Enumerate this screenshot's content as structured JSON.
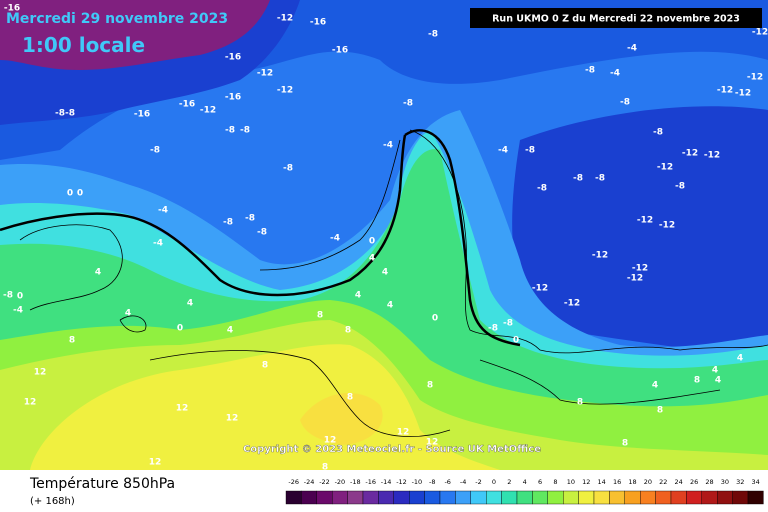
{
  "header": {
    "date": "Mercredi 29 novembre 2023",
    "time": "1:00 locale",
    "run": "Run UKMO 0 Z du Mercredi 22 novembre 2023"
  },
  "copyright": "Copyright © 2023 Meteociel.fr - Source UK MetOffice",
  "footer": {
    "title": "Température 850hPa",
    "subtitle": "(+ 168h)"
  },
  "legend": {
    "ticks": [
      -26,
      -24,
      -22,
      -20,
      -18,
      -16,
      -14,
      -12,
      -10,
      -8,
      -6,
      -4,
      -2,
      0,
      2,
      4,
      6,
      8,
      10,
      12,
      14,
      16,
      18,
      20,
      22,
      24,
      26,
      28,
      30,
      32,
      34
    ],
    "colors": [
      "#2a0030",
      "#4b0050",
      "#6a0a6a",
      "#80207f",
      "#8b3a8b",
      "#6a2aa0",
      "#4a2ab0",
      "#2b2bc0",
      "#1a40d0",
      "#1a5ae0",
      "#2878f0",
      "#3ca0f8",
      "#40c8f8",
      "#40e0e0",
      "#30e0b0",
      "#40e080",
      "#60e860",
      "#90f040",
      "#c8f040",
      "#f0f040",
      "#f8e040",
      "#f8c030",
      "#f8a020",
      "#f88020",
      "#f06020",
      "#e04020",
      "#d02020",
      "#b01818",
      "#901010",
      "#700808",
      "#300000"
    ]
  },
  "contour_labels": [
    -16,
    -12,
    -16,
    -8,
    -16,
    -16,
    -12,
    -12,
    -16,
    -16,
    -12,
    -8,
    -8,
    -16,
    -8,
    -8,
    -8,
    -8,
    -4,
    -8,
    -4,
    -8,
    -8,
    -8,
    -4,
    -4,
    0,
    4,
    4,
    4,
    4,
    0,
    4,
    8,
    8,
    0,
    4,
    8,
    12,
    12,
    12,
    12,
    12,
    8,
    8,
    8,
    12,
    12,
    12,
    8,
    -4,
    -4,
    -8,
    -12,
    -12,
    -12,
    -8,
    -8,
    -4,
    -8,
    -8,
    -8,
    -8,
    -12,
    -12,
    -12,
    -8,
    -12,
    -12,
    -12,
    -12,
    -12,
    -12,
    -12,
    -8,
    -8,
    0,
    4,
    4,
    8,
    4,
    8,
    8,
    8,
    4,
    -4,
    0,
    0,
    0,
    4,
    4,
    -12,
    -8
  ]
}
